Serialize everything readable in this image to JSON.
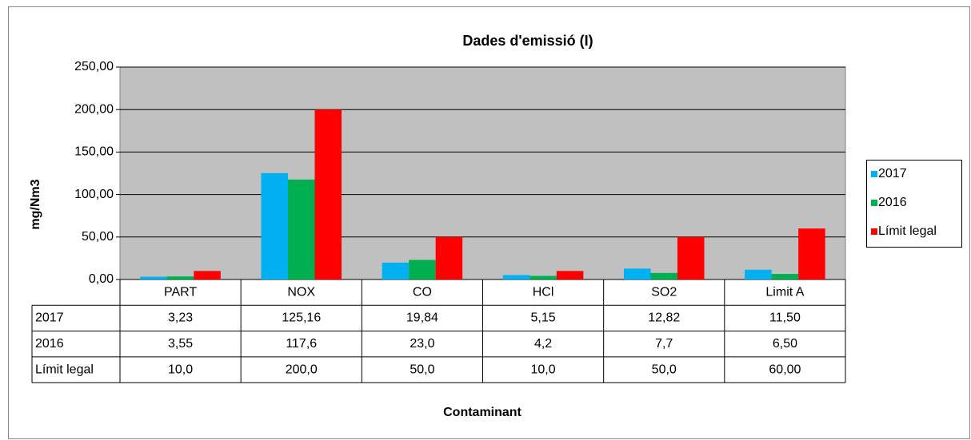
{
  "chart_data": {
    "type": "bar",
    "title": "Dades d'emissió (I)",
    "y_label": "mg/Nm3",
    "x_label": "Contaminant",
    "categories": [
      "PART",
      "NOX",
      "CO",
      "HCl",
      "SO2",
      "Limit A"
    ],
    "series": [
      {
        "name": "2017",
        "color": "#00b0f0",
        "values": [
          3.23,
          125.16,
          19.84,
          5.15,
          12.82,
          11.5
        ],
        "value_labels": [
          "3,23",
          "125,16",
          "19,84",
          "5,15",
          "12,82",
          "11,50"
        ]
      },
      {
        "name": "2016",
        "color": "#00b050",
        "values": [
          3.55,
          117.6,
          23.0,
          4.2,
          7.7,
          6.5
        ],
        "value_labels": [
          "3,55",
          "117,6",
          "23,0",
          "4,2",
          "7,7",
          "6,50"
        ]
      },
      {
        "name": "Límit legal",
        "color": "#ff0000",
        "values": [
          10.0,
          200.0,
          50.0,
          10.0,
          50.0,
          60.0
        ],
        "value_labels": [
          "10,0",
          "200,0",
          "50,0",
          "10,0",
          "50,0",
          "60,00"
        ]
      }
    ],
    "ylim": [
      0,
      250
    ],
    "yticks": [
      {
        "value": 0,
        "label": "0,00"
      },
      {
        "value": 50,
        "label": "50,00"
      },
      {
        "value": 100,
        "label": "100,00"
      },
      {
        "value": 150,
        "label": "150,00"
      },
      {
        "value": 200,
        "label": "200,00"
      },
      {
        "value": 250,
        "label": "250,00"
      }
    ],
    "grid": true,
    "legend": "right",
    "plot_background": "#c0c0c0"
  }
}
